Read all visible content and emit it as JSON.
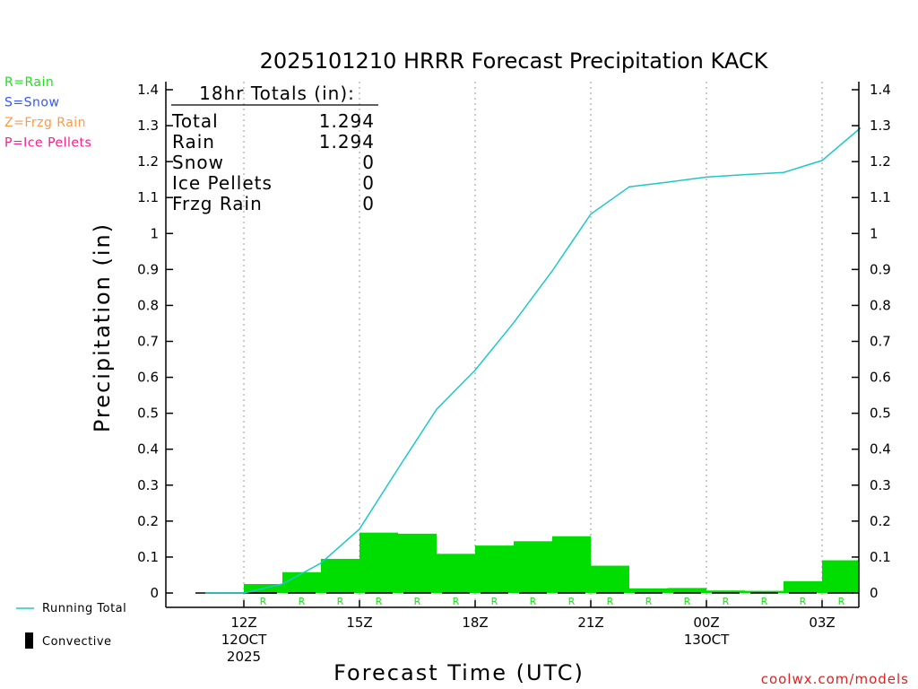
{
  "chart_data": {
    "type": "bar",
    "title": "2025101210 HRRR Forecast Precipitation KACK",
    "xlabel": "Forecast Time (UTC)",
    "ylabel": "Precipitation (in)",
    "ylim": [
      0,
      1.4
    ],
    "yticks": [
      "0",
      "0.1",
      "0.2",
      "0.3",
      "0.4",
      "0.5",
      "0.6",
      "0.7",
      "0.8",
      "0.9",
      "1",
      "1.1",
      "1.2",
      "1.3",
      "1.4"
    ],
    "xlim": [
      10.5,
      28
    ],
    "xticks": [
      {
        "hour": 12,
        "lines": [
          "12Z",
          "12OCT",
          "2025"
        ]
      },
      {
        "hour": 15,
        "lines": [
          "15Z"
        ]
      },
      {
        "hour": 18,
        "lines": [
          "18Z"
        ]
      },
      {
        "hour": 21,
        "lines": [
          "21Z"
        ]
      },
      {
        "hour": 24,
        "lines": [
          "00Z",
          "13OCT"
        ]
      },
      {
        "hour": 27,
        "lines": [
          "03Z"
        ]
      }
    ],
    "grid": "vertical dotted at ticks",
    "legend_placement": "left",
    "series": [
      {
        "name": "Running Total",
        "kind": "line",
        "color": "#1ec8c8",
        "x": [
          11,
          12,
          13,
          14,
          15,
          16,
          17,
          18,
          19,
          20,
          21,
          22,
          23,
          24,
          25,
          26,
          27,
          28
        ],
        "y": [
          0,
          0,
          0.025,
          0.083,
          0.178,
          0.346,
          0.511,
          0.62,
          0.752,
          0.896,
          1.054,
          1.13,
          1.143,
          1.157,
          1.164,
          1.17,
          1.203,
          1.294
        ]
      },
      {
        "name": "Hourly Precipitation",
        "kind": "bar",
        "color": "#00dd00",
        "x": [
          13,
          14,
          15,
          16,
          17,
          18,
          19,
          20,
          21,
          22,
          23,
          24,
          25,
          26,
          27,
          28
        ],
        "values": [
          0.025,
          0.058,
          0.095,
          0.168,
          0.165,
          0.109,
          0.132,
          0.144,
          0.158,
          0.076,
          0.013,
          0.014,
          0.007,
          0.006,
          0.033,
          0.091
        ],
        "type_markers": [
          "R",
          "R",
          "R",
          "R",
          "R",
          "R",
          "R",
          "R",
          "R",
          "R",
          "R",
          "R",
          "R",
          "R",
          "R",
          "R"
        ]
      }
    ],
    "totals": {
      "heading": "18hr Totals (in):",
      "rows": [
        {
          "label": "Total",
          "value": "1.294"
        },
        {
          "label": "Rain",
          "value": "1.294"
        },
        {
          "label": "Snow",
          "value": "0"
        },
        {
          "label": "Ice Pellets",
          "value": "0"
        },
        {
          "label": "Frzg Rain",
          "value": "0"
        }
      ]
    },
    "type_legend": [
      {
        "text": "R=Rain",
        "color": "#22dd22"
      },
      {
        "text": "S=Snow",
        "color": "#3355ff"
      },
      {
        "text": "Z=Frzg Rain",
        "color": "#ff9944"
      },
      {
        "text": "P=Ice Pellets",
        "color": "#ee2288"
      }
    ],
    "bottom_legend": [
      {
        "text": "Running Total",
        "symbol": "line",
        "color": "#1ec8c8"
      },
      {
        "text": "Convective",
        "symbol": "block",
        "color": "#000000"
      }
    ],
    "credit": "coolwx.com/models",
    "credit_color": "#dd2222"
  }
}
